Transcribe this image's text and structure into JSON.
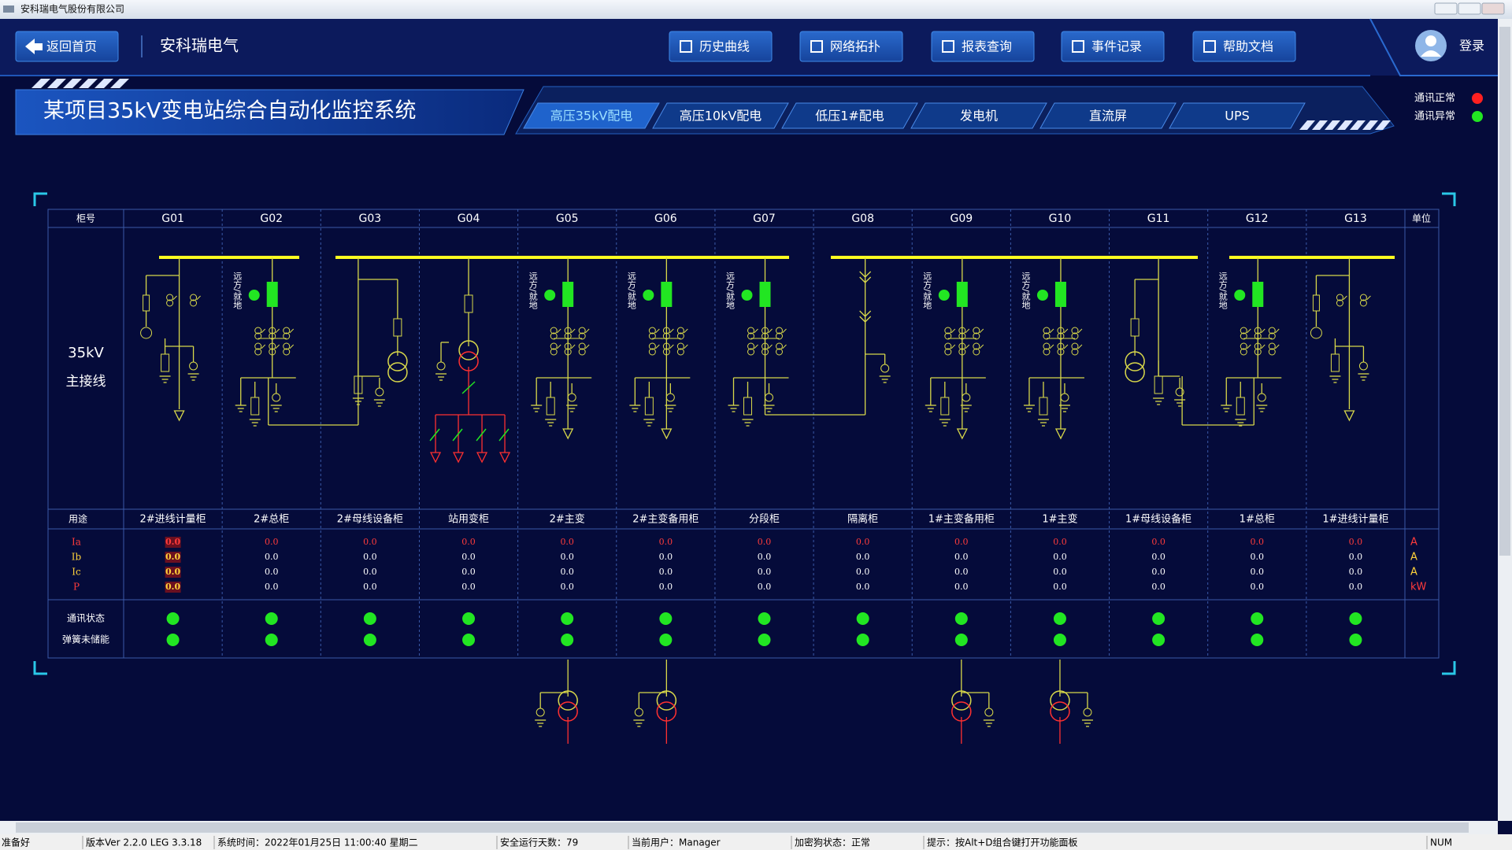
{
  "window": {
    "title": "安科瑞电气股份有限公司"
  },
  "header": {
    "back_button": "返回首页",
    "brand": "安科瑞电气",
    "nav": [
      "历史曲线",
      "网络拓扑",
      "报表查询",
      "事件记录",
      "帮助文档"
    ],
    "login": "登录",
    "system_title": "某项目35kV变电站综合自动化监控系统",
    "tabs": [
      "高压35kV配电",
      "高压10kV配电",
      "低压1#配电",
      "发电机",
      "直流屏",
      "UPS"
    ],
    "legend": [
      {
        "label": "通讯正常",
        "color": "#ff2020"
      },
      {
        "label": "通讯异常",
        "color": "#22e622"
      }
    ]
  },
  "table": {
    "cabinet_header": "柜号",
    "unit_header": "单位",
    "cabinets": [
      "G01",
      "G02",
      "G03",
      "G04",
      "G05",
      "G06",
      "G07",
      "G08",
      "G09",
      "G10",
      "G11",
      "G12",
      "G13"
    ],
    "diagram_label": [
      "35kV",
      "主接线"
    ],
    "switch_label": "远方/就地",
    "purpose_header": "用途",
    "purposes": [
      "2#进线计量柜",
      "2#总柜",
      "2#母线设备柜",
      "站用变柜",
      "2#主变",
      "2#主变备用柜",
      "分段柜",
      "隔离柜",
      "1#主变备用柜",
      "1#主变",
      "1#母线设备柜",
      "1#总柜",
      "1#进线计量柜"
    ],
    "measurements": [
      {
        "name": "Ia",
        "unit": "A",
        "values": [
          "0.0",
          "0.0",
          "0.0",
          "0.0",
          "0.0",
          "0.0",
          "0.0",
          "0.0",
          "0.0",
          "0.0",
          "0.0",
          "0.0",
          "0.0"
        ]
      },
      {
        "name": "Ib",
        "unit": "A",
        "values": [
          "0.0",
          "0.0",
          "0.0",
          "0.0",
          "0.0",
          "0.0",
          "0.0",
          "0.0",
          "0.0",
          "0.0",
          "0.0",
          "0.0",
          "0.0"
        ]
      },
      {
        "name": "Ic",
        "unit": "A",
        "values": [
          "0.0",
          "0.0",
          "0.0",
          "0.0",
          "0.0",
          "0.0",
          "0.0",
          "0.0",
          "0.0",
          "0.0",
          "0.0",
          "0.0",
          "0.0"
        ]
      },
      {
        "name": "P",
        "unit": "kW",
        "values": [
          "0.0",
          "0.0",
          "0.0",
          "0.0",
          "0.0",
          "0.0",
          "0.0",
          "0.0",
          "0.0",
          "0.0",
          "0.0",
          "0.0",
          "0.0"
        ]
      }
    ],
    "status_labels": [
      "通讯状态",
      "弹簧未储能"
    ]
  },
  "status_bar": [
    "准备好",
    "版本Ver 2.2.0 LEG 3.3.18",
    "系统时间：2022年01月25日  11:00:40  星期二",
    "安全运行天数：79",
    "当前用户：Manager",
    "加密狗状态：正常",
    "提示：按Alt+D组合键打开功能面板",
    "NUM"
  ]
}
